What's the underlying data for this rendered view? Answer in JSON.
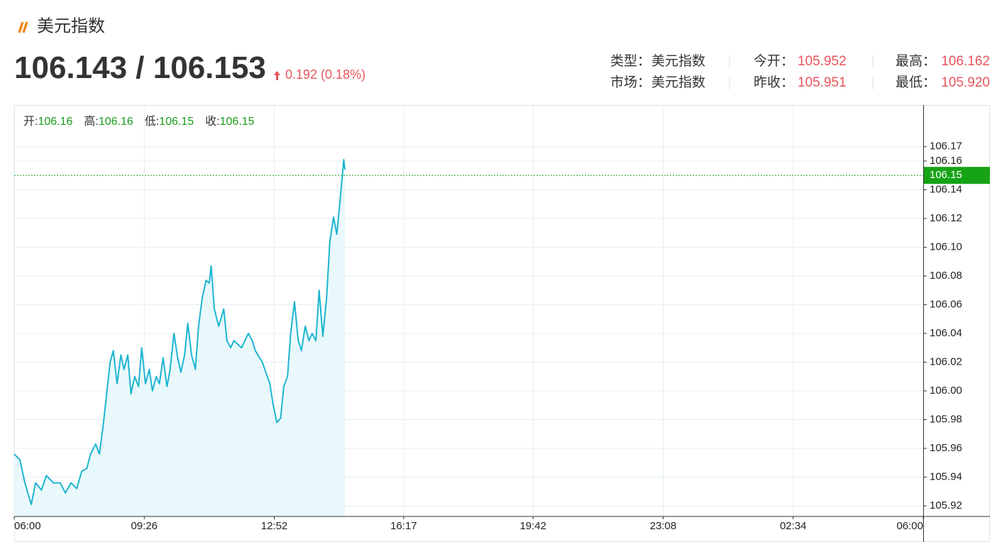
{
  "header": {
    "title": "美元指数"
  },
  "quote": {
    "bid": 106.143,
    "ask": 106.153,
    "change": 0.192,
    "change_pct": "0.18%"
  },
  "info": {
    "rows": [
      [
        {
          "label": "类型：",
          "value": "美元指数"
        },
        {
          "label": "今开：",
          "value": "105.952"
        },
        {
          "label": "最高：",
          "value": "106.162"
        }
      ],
      [
        {
          "label": "市场：",
          "value": "美元指数"
        },
        {
          "label": "昨收：",
          "value": "105.951"
        },
        {
          "label": "最低：",
          "value": "105.920"
        }
      ]
    ]
  },
  "chart_data": {
    "type": "line",
    "ohlc": {
      "labels": [
        "开:",
        "高:",
        "低:",
        "收:"
      ],
      "values": [
        106.16,
        106.16,
        106.15,
        106.15
      ]
    },
    "x": [
      0,
      9,
      17,
      27,
      34,
      43,
      51,
      62,
      73,
      81,
      90,
      99,
      107,
      115,
      121,
      129,
      135,
      141,
      146,
      152,
      157,
      163,
      169,
      174,
      180,
      185,
      191,
      197,
      202,
      208,
      214,
      219,
      225,
      230,
      236,
      242,
      247,
      253,
      259,
      264,
      270,
      275,
      281,
      287,
      292,
      298,
      304,
      309,
      312,
      317,
      324,
      332,
      337,
      343,
      348,
      360,
      371,
      377,
      382,
      393,
      405,
      410,
      416,
      422,
      427,
      433,
      438,
      444,
      450,
      455,
      461,
      467,
      472,
      478,
      483,
      489,
      495,
      500,
      506,
      511,
      517,
      522,
      524
    ],
    "values": [
      105.956,
      105.952,
      105.936,
      105.921,
      105.936,
      105.931,
      105.941,
      105.936,
      105.936,
      105.929,
      105.936,
      105.932,
      105.944,
      105.946,
      105.956,
      105.963,
      105.956,
      105.976,
      105.996,
      106.02,
      106.028,
      106.005,
      106.025,
      106.015,
      106.025,
      105.998,
      106.01,
      106.003,
      106.03,
      106.005,
      106.015,
      106.0,
      106.01,
      106.005,
      106.023,
      106.003,
      106.015,
      106.04,
      106.023,
      106.013,
      106.025,
      106.047,
      106.025,
      106.015,
      106.045,
      106.065,
      106.077,
      106.075,
      106.087,
      106.057,
      106.045,
      106.057,
      106.035,
      106.03,
      106.035,
      106.03,
      106.04,
      106.035,
      106.028,
      106.02,
      106.005,
      105.991,
      105.978,
      105.981,
      106.003,
      106.01,
      106.04,
      106.062,
      106.035,
      106.028,
      106.045,
      106.035,
      106.04,
      106.035,
      106.07,
      106.038,
      106.065,
      106.104,
      106.121,
      106.109,
      106.136,
      106.161,
      106.154
    ],
    "color": "#1db5d1",
    "area_color": "#e9f8fb",
    "last_price": 106.15,
    "last_price_color": "#16a316",
    "xlim": [
      0,
      1440
    ],
    "xticks": [
      {
        "value": 0,
        "label": "06:00"
      },
      {
        "value": 206,
        "label": "09:26"
      },
      {
        "value": 412,
        "label": "12:52"
      },
      {
        "value": 617,
        "label": "16:17"
      },
      {
        "value": 822,
        "label": "19:42"
      },
      {
        "value": 1028,
        "label": "23:08"
      },
      {
        "value": 1234,
        "label": "02:34"
      },
      {
        "value": 1440,
        "label": "06:00"
      }
    ],
    "ylim": [
      105.9126,
      106.199
    ],
    "yticks": [
      105.92,
      105.94,
      105.96,
      105.98,
      {
        "value": 106,
        "label": "106.00"
      },
      106.02,
      106.04,
      106.06,
      106.08,
      {
        "value": 106.1,
        "label": "106.10"
      },
      106.12,
      106.14,
      106.16,
      106.17
    ],
    "grid": true
  }
}
